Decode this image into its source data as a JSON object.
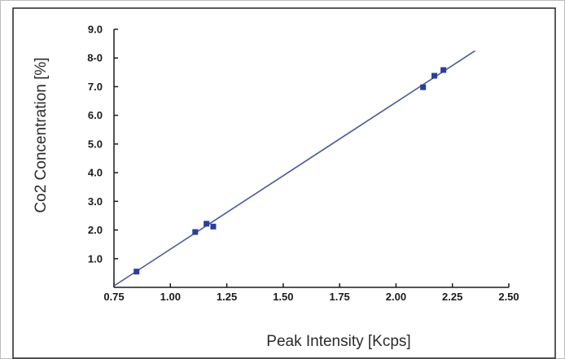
{
  "chart_data": {
    "type": "scatter",
    "title": "",
    "xlabel": "Peak Intensity [Kcps]",
    "ylabel": "Co2 Concentration [%]",
    "xlim": [
      0.75,
      2.5
    ],
    "ylim": [
      0,
      9.0
    ],
    "x_ticks": [
      0.75,
      1.0,
      1.25,
      1.5,
      1.75,
      2.0,
      2.25,
      2.5
    ],
    "x_tick_labels": [
      "0.75",
      "1.00",
      "1.25",
      "1.50",
      "1.75",
      "2.00",
      "2.25",
      "2.50"
    ],
    "y_ticks": [
      1.0,
      2.0,
      3.0,
      4.0,
      5.0,
      6.0,
      7.0,
      8.0,
      9.0
    ],
    "y_tick_labels": [
      "1.0",
      "2.0",
      "3.0",
      "4.0",
      "5.0",
      "6.0",
      "7.0",
      "8-0",
      "9.0"
    ],
    "grid": false,
    "series": [
      {
        "kind": "points",
        "marker": "square",
        "color": "#2a3f9a",
        "x": [
          0.85,
          1.11,
          1.16,
          1.19,
          2.12,
          2.17,
          2.21
        ],
        "y": [
          0.55,
          1.93,
          2.22,
          2.12,
          6.98,
          7.38,
          7.58
        ]
      },
      {
        "kind": "fit-line",
        "color": "#4a5a9a",
        "x": [
          0.75,
          2.35
        ],
        "y": [
          0.05,
          8.25
        ]
      }
    ]
  }
}
